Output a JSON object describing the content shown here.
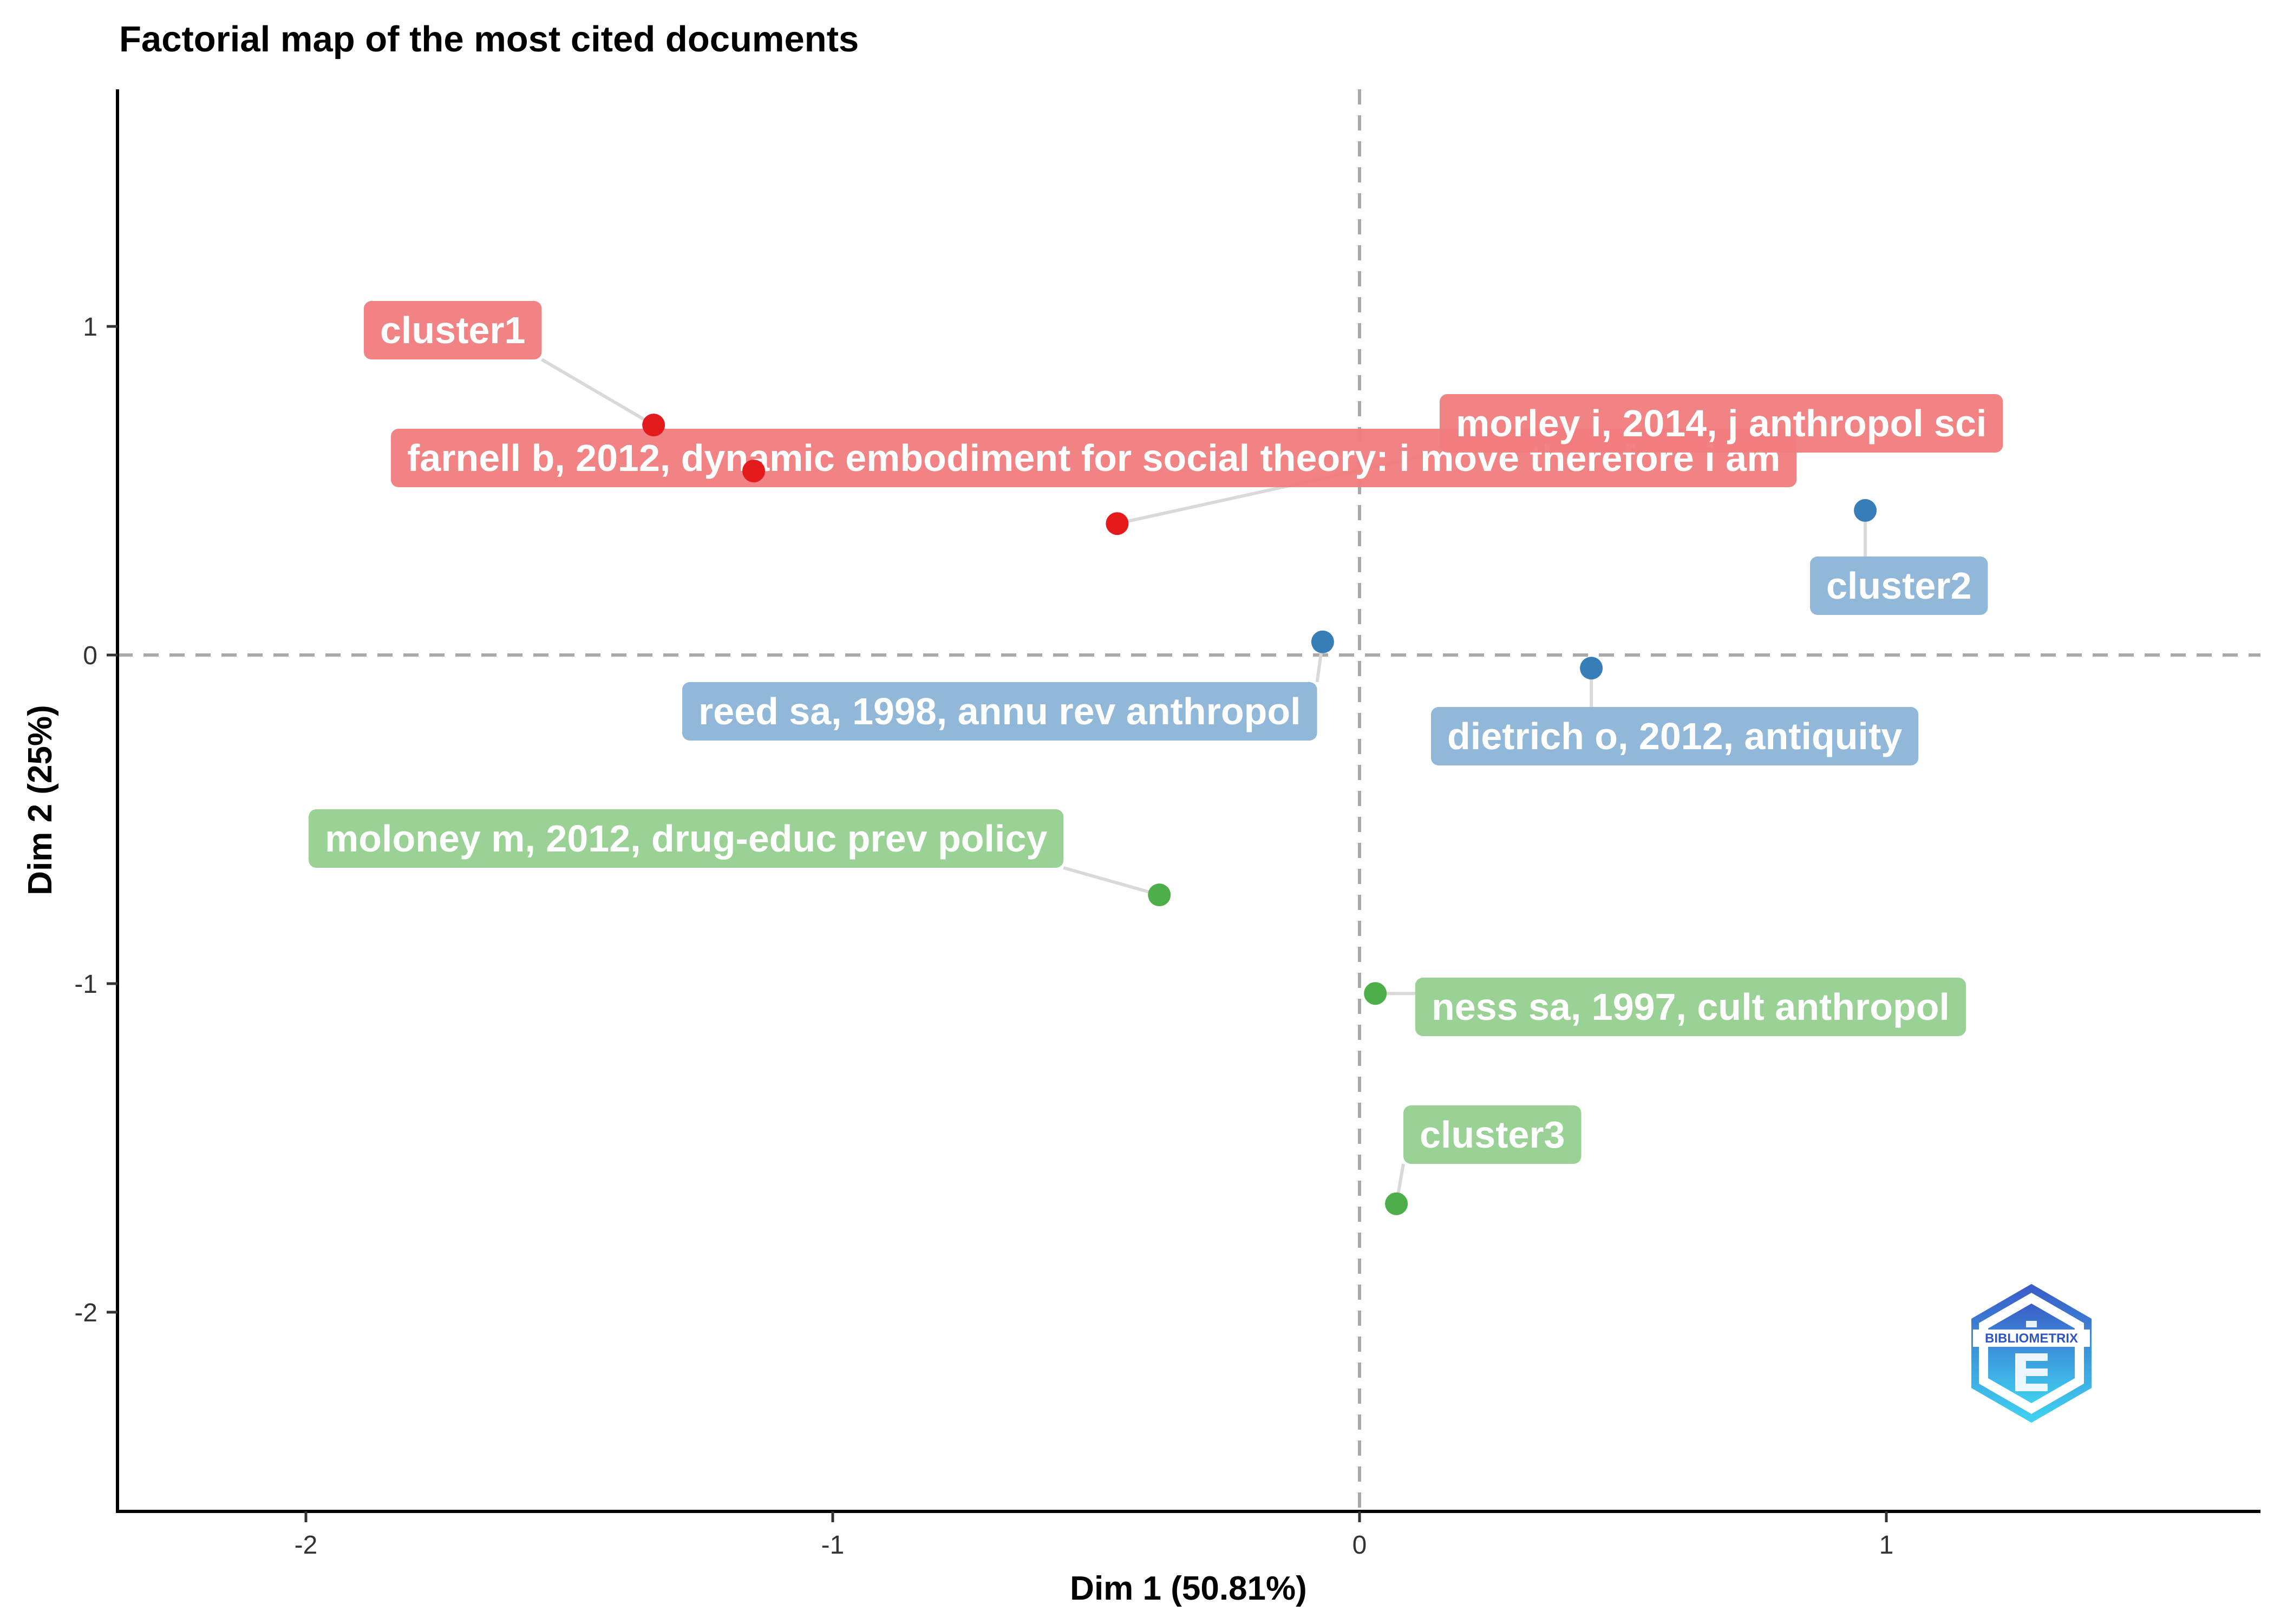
{
  "chart_data": {
    "type": "scatter",
    "title": "Factorial map of the most cited documents",
    "xlabel": "Dim 1 (50.81%)",
    "ylabel": "Dim 2 (25%)",
    "xlim": [
      -2.35,
      1.7
    ],
    "ylim": [
      -2.6,
      1.7
    ],
    "xticks": [
      -2,
      -1,
      0,
      1
    ],
    "yticks": [
      -2,
      -1,
      0,
      1
    ],
    "xtick_labels": [
      "-2",
      "-1",
      "0",
      "1"
    ],
    "ytick_labels": [
      "-2",
      "-1",
      "0",
      "1"
    ],
    "reference_lines": {
      "x": 0,
      "y": 0,
      "style": "dashed"
    },
    "grid": false,
    "legend": "none",
    "clusters": [
      {
        "label": "cluster1",
        "color": "#E41A1C",
        "label_color": "#F07C7D"
      },
      {
        "label": "cluster2",
        "color": "#377EB8",
        "label_color": "#8BB4D6"
      },
      {
        "label": "cluster3",
        "color": "#4DAF4A",
        "label_color": "#95D08F"
      }
    ],
    "points": [
      {
        "label": "cluster1",
        "cluster": 0,
        "x": -1.34,
        "y": 0.7
      },
      {
        "label": "farnell b, 2012, dynamic embodiment for social theory: i move therefore i am",
        "cluster": 0,
        "x": -1.15,
        "y": 0.56
      },
      {
        "label": "morley i, 2014, j anthropol sci",
        "cluster": 0,
        "x": -0.46,
        "y": 0.4
      },
      {
        "label": "cluster2",
        "cluster": 1,
        "x": 0.96,
        "y": 0.44
      },
      {
        "label": "reed sa, 1998, annu rev anthropol",
        "cluster": 1,
        "x": -0.07,
        "y": 0.04
      },
      {
        "label": "dietrich o, 2012, antiquity",
        "cluster": 1,
        "x": 0.44,
        "y": -0.04
      },
      {
        "label": "moloney m, 2012, drug-educ prev policy",
        "cluster": 2,
        "x": -0.38,
        "y": -0.73
      },
      {
        "label": "ness sa, 1997, cult anthropol",
        "cluster": 2,
        "x": 0.03,
        "y": -1.03
      },
      {
        "label": "cluster3",
        "cluster": 2,
        "x": 0.07,
        "y": -1.67
      }
    ],
    "logo_text": "BIBLIOMETRIX"
  }
}
